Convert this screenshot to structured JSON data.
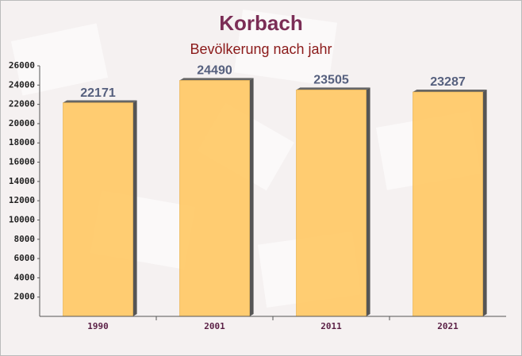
{
  "chart_data": {
    "type": "bar",
    "title": "Korbach",
    "subtitle": "Bevölkerung nach jahr",
    "categories": [
      "1990",
      "2001",
      "2011",
      "2021"
    ],
    "values": [
      22171,
      24490,
      23505,
      23287
    ],
    "color": "#ffc966",
    "ylim": [
      0,
      26000
    ],
    "yticks": [
      2000,
      4000,
      6000,
      8000,
      10000,
      12000,
      14000,
      16000,
      18000,
      20000,
      22000,
      24000,
      26000
    ],
    "grid": false
  }
}
